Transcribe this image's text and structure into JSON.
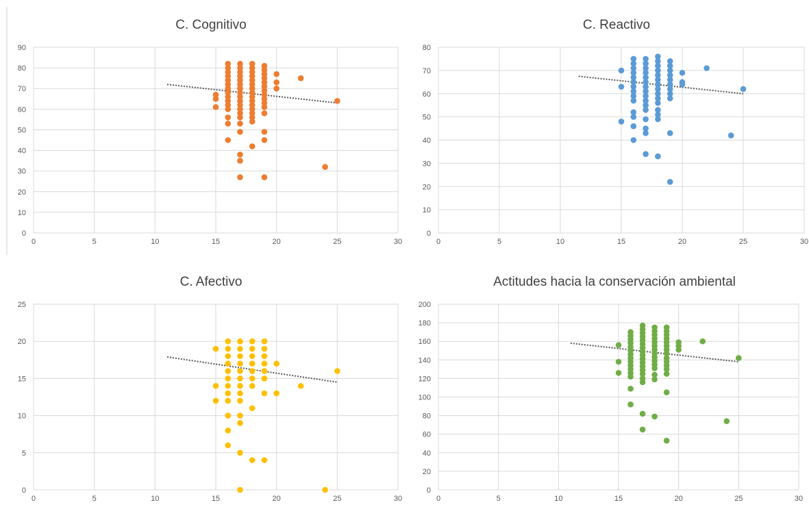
{
  "chart_data": [
    {
      "type": "scatter",
      "title": "C. Cognitivo",
      "xlabel": "",
      "ylabel": "",
      "color": "#ED7D31",
      "xlim": [
        0,
        30
      ],
      "ylim": [
        0,
        90
      ],
      "x_ticks": [
        0,
        5,
        10,
        15,
        20,
        25,
        30
      ],
      "y_ticks": [
        0,
        10,
        20,
        30,
        40,
        50,
        60,
        70,
        80,
        90
      ],
      "grid": true,
      "trendline": {
        "x": [
          11,
          25
        ],
        "y": [
          72,
          63
        ]
      },
      "points": [
        [
          15,
          67
        ],
        [
          15,
          65
        ],
        [
          15,
          61
        ],
        [
          16,
          82
        ],
        [
          16,
          80
        ],
        [
          16,
          78
        ],
        [
          16,
          76
        ],
        [
          16,
          74
        ],
        [
          16,
          72
        ],
        [
          16,
          70
        ],
        [
          16,
          68
        ],
        [
          16,
          66
        ],
        [
          16,
          64
        ],
        [
          16,
          62
        ],
        [
          16,
          60
        ],
        [
          16,
          56
        ],
        [
          16,
          53
        ],
        [
          16,
          45
        ],
        [
          17,
          82
        ],
        [
          17,
          80
        ],
        [
          17,
          78
        ],
        [
          17,
          76
        ],
        [
          17,
          74
        ],
        [
          17,
          72
        ],
        [
          17,
          70
        ],
        [
          17,
          68
        ],
        [
          17,
          66
        ],
        [
          17,
          64
        ],
        [
          17,
          62
        ],
        [
          17,
          60
        ],
        [
          17,
          58
        ],
        [
          17,
          56
        ],
        [
          17,
          53
        ],
        [
          17,
          49
        ],
        [
          17,
          38
        ],
        [
          17,
          35
        ],
        [
          17,
          27
        ],
        [
          18,
          82
        ],
        [
          18,
          80
        ],
        [
          18,
          78
        ],
        [
          18,
          76
        ],
        [
          18,
          74
        ],
        [
          18,
          72
        ],
        [
          18,
          70
        ],
        [
          18,
          68
        ],
        [
          18,
          66
        ],
        [
          18,
          64
        ],
        [
          18,
          62
        ],
        [
          18,
          60
        ],
        [
          18,
          58
        ],
        [
          18,
          56
        ],
        [
          18,
          54
        ],
        [
          18,
          42
        ],
        [
          19,
          81
        ],
        [
          19,
          79
        ],
        [
          19,
          77
        ],
        [
          19,
          75
        ],
        [
          19,
          73
        ],
        [
          19,
          71
        ],
        [
          19,
          69
        ],
        [
          19,
          67
        ],
        [
          19,
          65
        ],
        [
          19,
          63
        ],
        [
          19,
          61
        ],
        [
          19,
          58
        ],
        [
          19,
          49
        ],
        [
          19,
          45
        ],
        [
          19,
          27
        ],
        [
          20,
          77
        ],
        [
          20,
          73
        ],
        [
          20,
          70
        ],
        [
          22,
          75
        ],
        [
          24,
          32
        ],
        [
          25,
          64
        ]
      ]
    },
    {
      "type": "scatter",
      "title": "C. Reactivo",
      "xlabel": "",
      "ylabel": "",
      "color": "#5B9BD5",
      "xlim": [
        0,
        30
      ],
      "ylim": [
        0,
        80
      ],
      "x_ticks": [
        0,
        5,
        10,
        15,
        20,
        25,
        30
      ],
      "y_ticks": [
        0,
        10,
        20,
        30,
        40,
        50,
        60,
        70,
        80
      ],
      "grid": true,
      "trendline": {
        "x": [
          11.5,
          25
        ],
        "y": [
          67.5,
          60
        ]
      },
      "points": [
        [
          15,
          70
        ],
        [
          15,
          63
        ],
        [
          15,
          48
        ],
        [
          16,
          75
        ],
        [
          16,
          73
        ],
        [
          16,
          71
        ],
        [
          16,
          69
        ],
        [
          16,
          67
        ],
        [
          16,
          65
        ],
        [
          16,
          63
        ],
        [
          16,
          61
        ],
        [
          16,
          59
        ],
        [
          16,
          57
        ],
        [
          16,
          52
        ],
        [
          16,
          50
        ],
        [
          16,
          46
        ],
        [
          16,
          40
        ],
        [
          17,
          75
        ],
        [
          17,
          73
        ],
        [
          17,
          71
        ],
        [
          17,
          69
        ],
        [
          17,
          67
        ],
        [
          17,
          65
        ],
        [
          17,
          63
        ],
        [
          17,
          61
        ],
        [
          17,
          59
        ],
        [
          17,
          57
        ],
        [
          17,
          55
        ],
        [
          17,
          53
        ],
        [
          17,
          49
        ],
        [
          17,
          45
        ],
        [
          17,
          43
        ],
        [
          17,
          34
        ],
        [
          18,
          76
        ],
        [
          18,
          74
        ],
        [
          18,
          72
        ],
        [
          18,
          70
        ],
        [
          18,
          68
        ],
        [
          18,
          66
        ],
        [
          18,
          64
        ],
        [
          18,
          62
        ],
        [
          18,
          60
        ],
        [
          18,
          58
        ],
        [
          18,
          56
        ],
        [
          18,
          53
        ],
        [
          18,
          51
        ],
        [
          18,
          49
        ],
        [
          18,
          33
        ],
        [
          19,
          74
        ],
        [
          19,
          72
        ],
        [
          19,
          70
        ],
        [
          19,
          68
        ],
        [
          19,
          66
        ],
        [
          19,
          64
        ],
        [
          19,
          62
        ],
        [
          19,
          60
        ],
        [
          19,
          58
        ],
        [
          19,
          43
        ],
        [
          19,
          22
        ],
        [
          20,
          69
        ],
        [
          20,
          65
        ],
        [
          20,
          64
        ],
        [
          22,
          71
        ],
        [
          24,
          42
        ],
        [
          25,
          62
        ]
      ]
    },
    {
      "type": "scatter",
      "title": "C. Afectivo",
      "xlabel": "",
      "ylabel": "",
      "color": "#FFC000",
      "xlim": [
        0,
        30
      ],
      "ylim": [
        0,
        25
      ],
      "x_ticks": [
        0,
        5,
        10,
        15,
        20,
        25,
        30
      ],
      "y_ticks": [
        0,
        5,
        10,
        15,
        20,
        25
      ],
      "grid": true,
      "trendline": {
        "x": [
          11,
          25
        ],
        "y": [
          17.9,
          14.5
        ]
      },
      "points": [
        [
          15,
          19
        ],
        [
          15,
          14
        ],
        [
          15,
          12
        ],
        [
          16,
          20
        ],
        [
          16,
          19
        ],
        [
          16,
          18
        ],
        [
          16,
          17
        ],
        [
          16,
          16
        ],
        [
          16,
          15
        ],
        [
          16,
          14
        ],
        [
          16,
          13
        ],
        [
          16,
          12
        ],
        [
          16,
          10
        ],
        [
          16,
          8
        ],
        [
          16,
          6
        ],
        [
          17,
          20
        ],
        [
          17,
          19
        ],
        [
          17,
          18
        ],
        [
          17,
          17
        ],
        [
          17,
          16
        ],
        [
          17,
          15
        ],
        [
          17,
          14
        ],
        [
          17,
          13
        ],
        [
          17,
          12
        ],
        [
          17,
          10
        ],
        [
          17,
          9
        ],
        [
          17,
          5
        ],
        [
          17,
          0
        ],
        [
          18,
          20
        ],
        [
          18,
          19
        ],
        [
          18,
          18
        ],
        [
          18,
          17
        ],
        [
          18,
          16
        ],
        [
          18,
          15
        ],
        [
          18,
          14
        ],
        [
          18,
          11
        ],
        [
          18,
          4
        ],
        [
          19,
          20
        ],
        [
          19,
          19
        ],
        [
          19,
          18
        ],
        [
          19,
          17
        ],
        [
          19,
          16
        ],
        [
          19,
          15
        ],
        [
          19,
          13
        ],
        [
          19,
          4
        ],
        [
          20,
          17
        ],
        [
          20,
          13
        ],
        [
          22,
          14
        ],
        [
          24,
          0
        ],
        [
          25,
          16
        ]
      ]
    },
    {
      "type": "scatter",
      "title": "Actitudes hacia la conservación ambiental",
      "xlabel": "",
      "ylabel": "",
      "color": "#70AD47",
      "xlim": [
        0,
        30
      ],
      "ylim": [
        0,
        200
      ],
      "x_ticks": [
        0,
        5,
        10,
        15,
        20,
        25,
        30
      ],
      "y_ticks": [
        0,
        20,
        40,
        60,
        80,
        100,
        120,
        140,
        160,
        180,
        200
      ],
      "grid": true,
      "trendline": {
        "x": [
          11,
          25
        ],
        "y": [
          158,
          138
        ]
      },
      "points": [
        [
          15,
          156
        ],
        [
          15,
          138
        ],
        [
          15,
          126
        ],
        [
          16,
          170
        ],
        [
          16,
          166
        ],
        [
          16,
          162
        ],
        [
          16,
          158
        ],
        [
          16,
          154
        ],
        [
          16,
          150
        ],
        [
          16,
          146
        ],
        [
          16,
          142
        ],
        [
          16,
          138
        ],
        [
          16,
          134
        ],
        [
          16,
          130
        ],
        [
          16,
          126
        ],
        [
          16,
          122
        ],
        [
          16,
          109
        ],
        [
          16,
          92
        ],
        [
          17,
          177
        ],
        [
          17,
          173
        ],
        [
          17,
          169
        ],
        [
          17,
          165
        ],
        [
          17,
          161
        ],
        [
          17,
          157
        ],
        [
          17,
          153
        ],
        [
          17,
          149
        ],
        [
          17,
          145
        ],
        [
          17,
          141
        ],
        [
          17,
          137
        ],
        [
          17,
          133
        ],
        [
          17,
          129
        ],
        [
          17,
          125
        ],
        [
          17,
          120
        ],
        [
          17,
          116
        ],
        [
          17,
          82
        ],
        [
          17,
          65
        ],
        [
          18,
          175
        ],
        [
          18,
          171
        ],
        [
          18,
          167
        ],
        [
          18,
          163
        ],
        [
          18,
          159
        ],
        [
          18,
          155
        ],
        [
          18,
          151
        ],
        [
          18,
          147
        ],
        [
          18,
          143
        ],
        [
          18,
          139
        ],
        [
          18,
          135
        ],
        [
          18,
          131
        ],
        [
          18,
          124
        ],
        [
          18,
          119
        ],
        [
          18,
          79
        ],
        [
          19,
          175
        ],
        [
          19,
          171
        ],
        [
          19,
          167
        ],
        [
          19,
          163
        ],
        [
          19,
          159
        ],
        [
          19,
          155
        ],
        [
          19,
          151
        ],
        [
          19,
          147
        ],
        [
          19,
          142
        ],
        [
          19,
          138
        ],
        [
          19,
          134
        ],
        [
          19,
          130
        ],
        [
          19,
          125
        ],
        [
          19,
          105
        ],
        [
          19,
          53
        ],
        [
          20,
          159
        ],
        [
          20,
          155
        ],
        [
          20,
          151
        ],
        [
          22,
          160
        ],
        [
          24,
          74
        ],
        [
          25,
          142
        ]
      ]
    }
  ]
}
